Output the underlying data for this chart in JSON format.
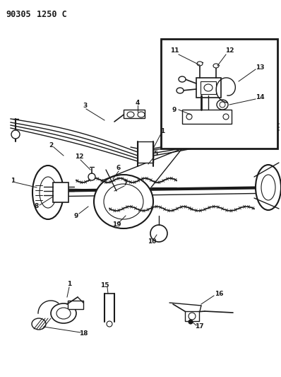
{
  "title": "90305  1250 C",
  "bg_color": "#ffffff",
  "line_color": "#1a1a1a",
  "text_color": "#1a1a1a",
  "title_fontsize": 8.5,
  "fig_width": 3.98,
  "fig_height": 5.33,
  "dpi": 100,
  "font_size_labels": 6.5,
  "font_size_title": 8.5
}
